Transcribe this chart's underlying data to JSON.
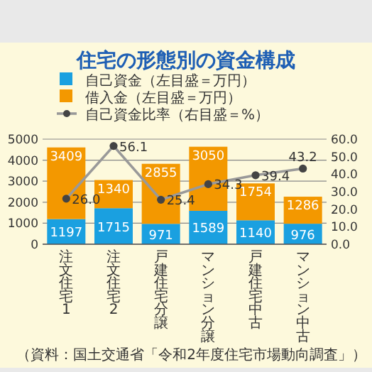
{
  "chart_data": {
    "type": "bar",
    "stacked": true,
    "title": "住宅の形態別の資金構成",
    "categories": [
      "注文住宅1",
      "注文住宅2",
      "戸建住宅分譲",
      "マンション分譲",
      "戸建住宅中古",
      "マンション中古"
    ],
    "series": [
      {
        "name": "自己資金（左目盛＝万円）",
        "color": "#1aa0e0",
        "values": [
          1197,
          1715,
          971,
          1589,
          1140,
          976
        ]
      },
      {
        "name": "借入金（左目盛＝万円）",
        "color": "#f39800",
        "values": [
          3409,
          1340,
          2855,
          3050,
          1754,
          1286
        ]
      },
      {
        "name": "自己資金比率（右目盛＝%）",
        "color": "#999999",
        "type": "line",
        "axis": "y2",
        "marker": "circle",
        "values": [
          26.0,
          56.1,
          25.4,
          34.3,
          39.4,
          43.2
        ],
        "value_labels": [
          "26.0",
          "56.1",
          "25.4",
          "34.3",
          "39.4",
          "43.2"
        ]
      }
    ],
    "ylim": [
      0,
      5000
    ],
    "yticks": [
      0,
      1000,
      2000,
      3000,
      4000,
      5000
    ],
    "y2lim": [
      0,
      60
    ],
    "y2ticks": [
      {
        "value": 0,
        "label": "0.0"
      },
      {
        "value": 10,
        "label": "10.0"
      },
      {
        "value": 20,
        "label": "20.0"
      },
      {
        "value": 30,
        "label": "30.0"
      },
      {
        "value": 40,
        "label": "40.0"
      },
      {
        "value": 50,
        "label": "50.0"
      },
      {
        "value": 60,
        "label": "60.0"
      }
    ],
    "grid": "y",
    "legend": "top",
    "data_labels": true,
    "annotations": [
      "（資料：国土交通省「令和2年度住宅市場動向調査」）"
    ]
  }
}
